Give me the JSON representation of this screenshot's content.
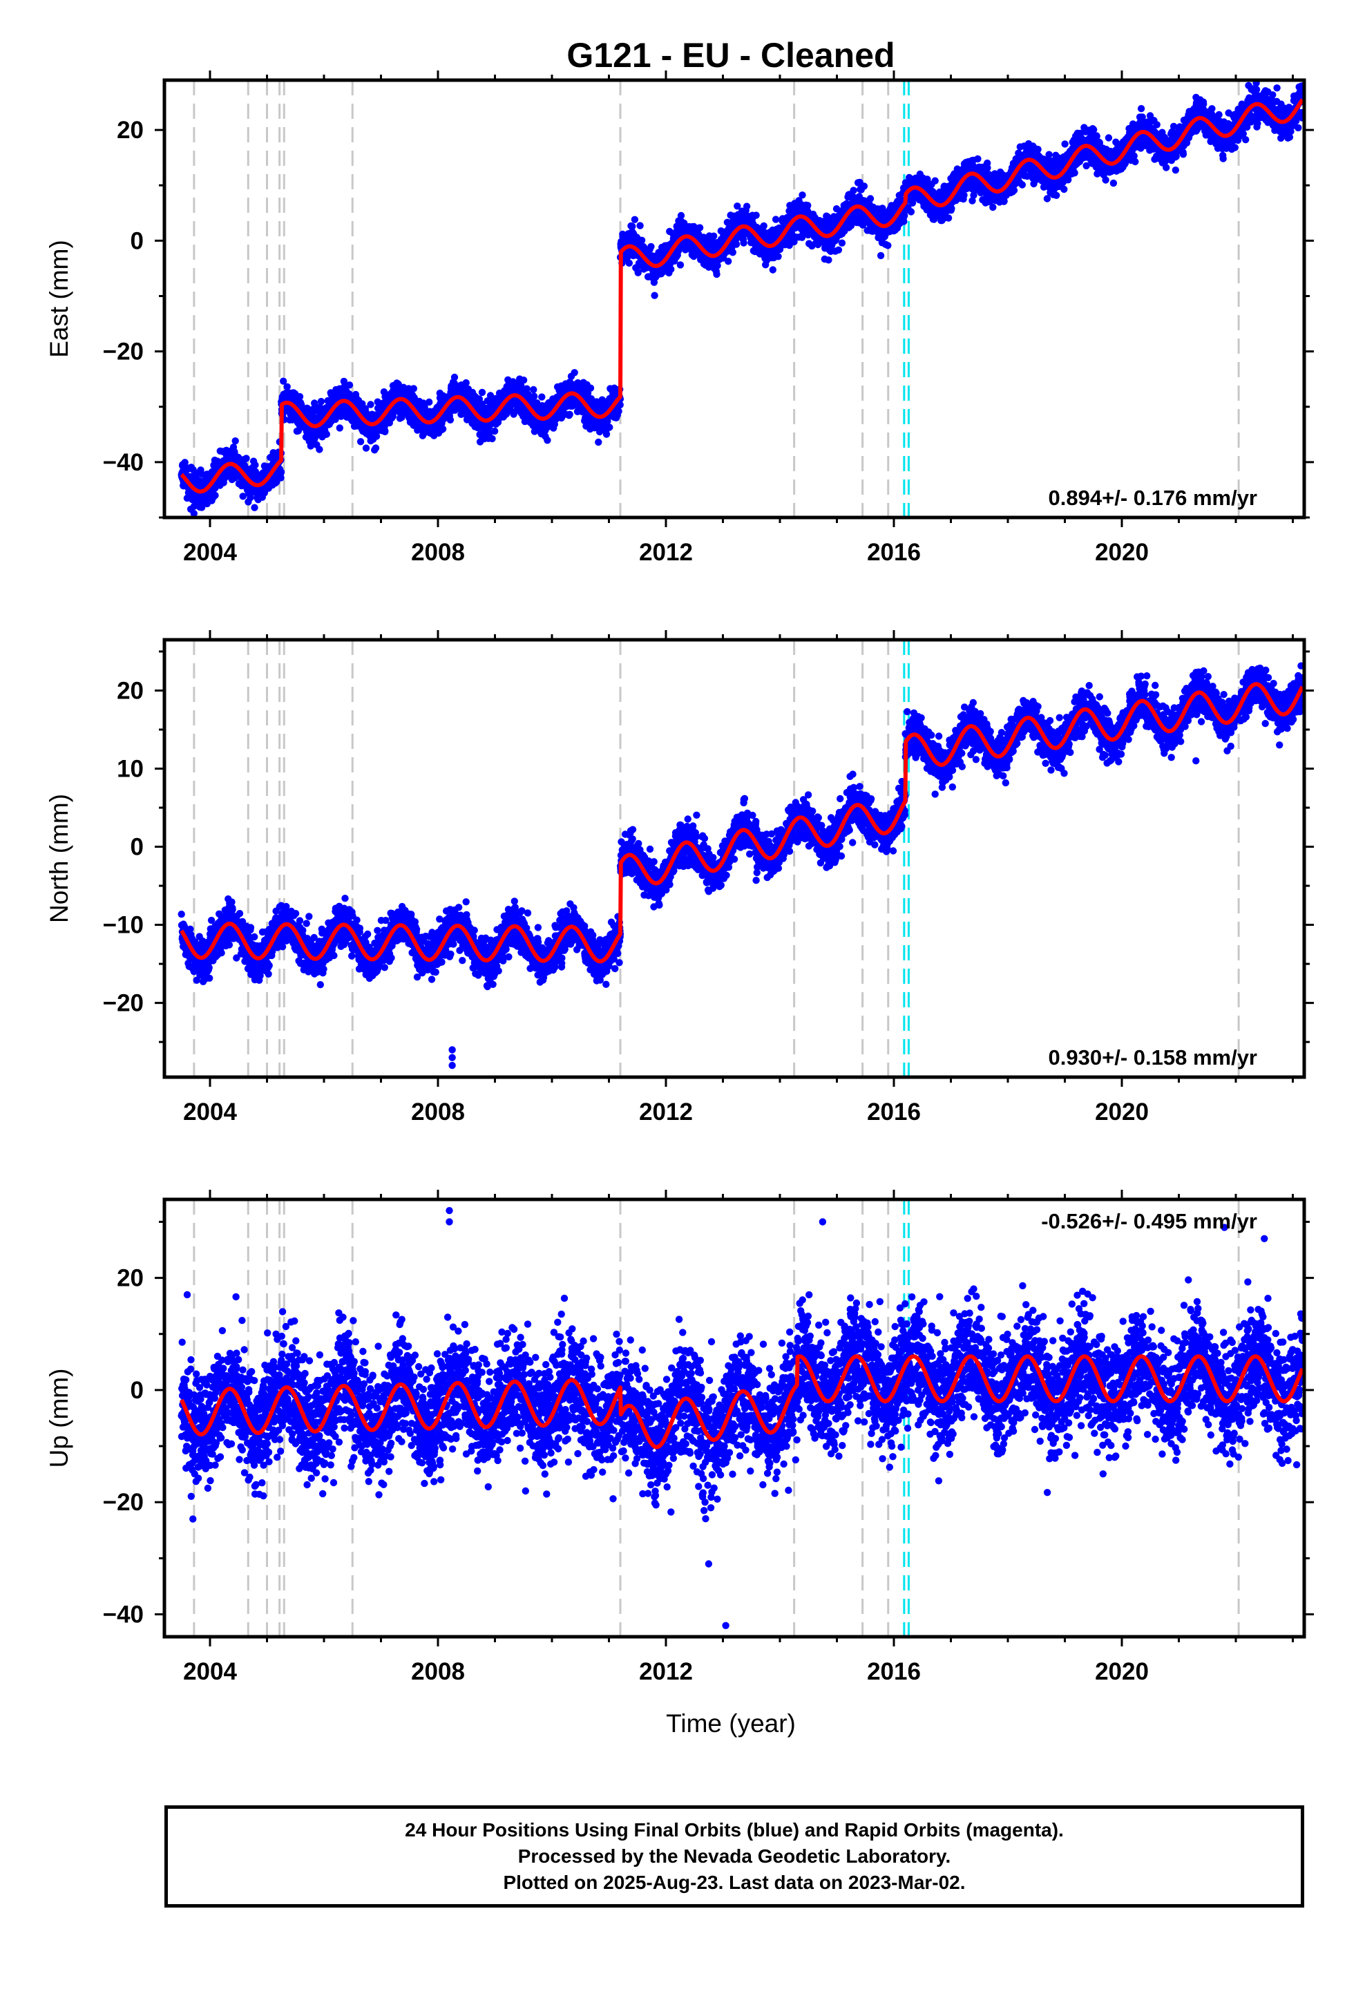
{
  "title": "G121  - EU - Cleaned",
  "xlabel": "Time (year)",
  "footer": {
    "line1": "24 Hour Positions Using Final Orbits (blue) and Rapid Orbits (magenta).",
    "line2": "Processed by the Nevada Geodetic Laboratory.",
    "line3": "Plotted on 2025-Aug-23. Last data on 2023-Mar-02."
  },
  "colors": {
    "data": "#0000ff",
    "model": "#ff0000",
    "offset_lines": "#c8c8c8",
    "rapid_lines": "#00e5ee"
  },
  "chart_data": [
    {
      "type": "scatter",
      "component": "East",
      "ylabel": "East (mm)",
      "rate_label": "0.894+/- 0.176 mm/yr",
      "xlim": [
        2003.2,
        2023.2
      ],
      "ylim": [
        -50,
        29
      ],
      "xticks": [
        2004,
        2008,
        2012,
        2016,
        2020
      ],
      "yticks": [
        -40,
        -20,
        0,
        20
      ],
      "data_range": [
        2003.5,
        2023.17
      ],
      "scatter_sigma": 1.5,
      "seasonal_amplitude": 2.2,
      "model_segments": [
        {
          "t0": 2003.5,
          "t1": 2005.25,
          "y0": -43.5,
          "y1": -41.5
        },
        {
          "t0": 2005.25,
          "t1": 2011.2,
          "y0": -31.5,
          "y1": -29.5
        },
        {
          "t0": 2011.2,
          "t1": 2016.2,
          "y0": -3.5,
          "y1": 5.5
        },
        {
          "t0": 2016.2,
          "t1": 2023.17,
          "y0": 7.0,
          "y1": 24.5
        }
      ],
      "grey_lines": [
        2003.72,
        2004.67,
        2005.0,
        2005.22,
        2005.3,
        2006.5,
        2011.2,
        2014.25,
        2015.45,
        2015.9,
        2022.05
      ],
      "cyan_lines": [
        2016.18,
        2016.26
      ]
    },
    {
      "type": "scatter",
      "component": "North",
      "ylabel": "North (mm)",
      "rate_label": "0.930+/- 0.158 mm/yr",
      "xlim": [
        2003.2,
        2023.2
      ],
      "ylim": [
        -29.5,
        26.5
      ],
      "xticks": [
        2004,
        2008,
        2012,
        2016,
        2020
      ],
      "yticks": [
        -20,
        -10,
        0,
        10,
        20
      ],
      "data_range": [
        2003.5,
        2023.17
      ],
      "scatter_sigma": 1.3,
      "seasonal_amplitude": 2.2,
      "model_segments": [
        {
          "t0": 2003.5,
          "t1": 2011.2,
          "y0": -12.0,
          "y1": -12.5
        },
        {
          "t0": 2011.2,
          "t1": 2016.2,
          "y0": -3.5,
          "y1": 4.5
        },
        {
          "t0": 2016.2,
          "t1": 2023.17,
          "y0": 12.0,
          "y1": 19.5
        }
      ],
      "outliers": [
        {
          "x": 2008.25,
          "y": -26.0
        },
        {
          "x": 2008.25,
          "y": -27.0
        },
        {
          "x": 2008.25,
          "y": -28.0
        },
        {
          "x": 2021.3,
          "y": 11.0
        }
      ],
      "grey_lines": [
        2003.72,
        2004.67,
        2005.0,
        2005.22,
        2005.3,
        2006.5,
        2011.2,
        2014.25,
        2015.45,
        2015.9,
        2022.05
      ],
      "cyan_lines": [
        2016.18,
        2016.26
      ]
    },
    {
      "type": "scatter",
      "component": "Up",
      "ylabel": "Up (mm)",
      "rate_label": "-0.526+/- 0.495 mm/yr",
      "xlim": [
        2003.2,
        2023.2
      ],
      "ylim": [
        -44,
        34
      ],
      "xticks": [
        2004,
        2008,
        2012,
        2016,
        2020
      ],
      "yticks": [
        -40,
        -20,
        0,
        20
      ],
      "data_range": [
        2003.5,
        2023.17
      ],
      "scatter_sigma": 5.0,
      "seasonal_amplitude": 4.0,
      "model_segments": [
        {
          "t0": 2003.5,
          "t1": 2011.2,
          "y0": -4.0,
          "y1": -2.0
        },
        {
          "t0": 2011.2,
          "t1": 2014.3,
          "y0": -7.0,
          "y1": -3.0
        },
        {
          "t0": 2014.3,
          "t1": 2023.17,
          "y0": 2.0,
          "y1": 2.0
        }
      ],
      "outliers": [
        {
          "x": 2008.2,
          "y": 32.0
        },
        {
          "x": 2008.2,
          "y": 30.0
        },
        {
          "x": 2013.05,
          "y": -42.0
        },
        {
          "x": 2014.75,
          "y": 30.0
        },
        {
          "x": 2012.75,
          "y": -31.0
        },
        {
          "x": 2022.5,
          "y": 27.0
        },
        {
          "x": 2021.8,
          "y": 29.0
        },
        {
          "x": 2003.7,
          "y": -23.0
        },
        {
          "x": 2003.6,
          "y": 17.0
        }
      ],
      "grey_lines": [
        2003.72,
        2004.67,
        2005.0,
        2005.22,
        2005.3,
        2006.5,
        2011.2,
        2014.25,
        2015.45,
        2015.9,
        2022.05
      ],
      "cyan_lines": [
        2016.18,
        2016.26
      ]
    }
  ]
}
